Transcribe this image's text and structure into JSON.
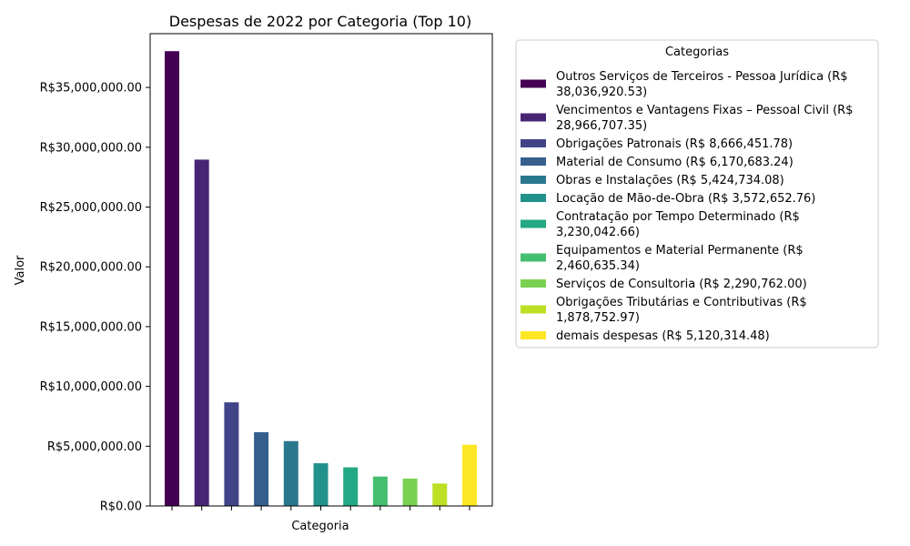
{
  "chart_data": {
    "type": "bar",
    "title": "Despesas de 2022 por Categoria (Top 10)",
    "xlabel": "Categoria",
    "ylabel": "Valor",
    "ylim": [
      0,
      39500000
    ],
    "y_ticks": [
      {
        "value": 0,
        "label": "R$0.00"
      },
      {
        "value": 5000000,
        "label": "R$5,000,000.00"
      },
      {
        "value": 10000000,
        "label": "R$10,000,000.00"
      },
      {
        "value": 15000000,
        "label": "R$15,000,000.00"
      },
      {
        "value": 20000000,
        "label": "R$20,000,000.00"
      },
      {
        "value": 25000000,
        "label": "R$25,000,000.00"
      },
      {
        "value": 30000000,
        "label": "R$30,000,000.00"
      },
      {
        "value": 35000000,
        "label": "R$35,000,000.00"
      }
    ],
    "grid": false,
    "legend": {
      "title": "Categorias",
      "placement": "outside-right"
    },
    "series": [
      {
        "name": "Outros Serviços de Terceiros - Pessoa Jurídica (R$ 38,036,920.53)",
        "legend_lines": [
          "Outros Serviços de Terceiros - Pessoa Jurídica (R$",
          "38,036,920.53)"
        ],
        "value": 38036920.53,
        "color": "#440154"
      },
      {
        "name": "Vencimentos e Vantagens Fixas – Pessoal Civil (R$ 28,966,707.35)",
        "legend_lines": [
          "Vencimentos e Vantagens Fixas – Pessoal Civil (R$",
          "28,966,707.35)"
        ],
        "value": 28966707.35,
        "color": "#482475"
      },
      {
        "name": "Obrigações Patronais (R$ 8,666,451.78)",
        "legend_lines": [
          "Obrigações Patronais (R$ 8,666,451.78)"
        ],
        "value": 8666451.78,
        "color": "#414487"
      },
      {
        "name": "Material de Consumo (R$ 6,170,683.24)",
        "legend_lines": [
          "Material de Consumo (R$ 6,170,683.24)"
        ],
        "value": 6170683.24,
        "color": "#355f8d"
      },
      {
        "name": "Obras e Instalações (R$ 5,424,734.08)",
        "legend_lines": [
          "Obras e Instalações (R$ 5,424,734.08)"
        ],
        "value": 5424734.08,
        "color": "#2a788e"
      },
      {
        "name": "Locação de Mão-de-Obra (R$ 3,572,652.76)",
        "legend_lines": [
          "Locação de Mão-de-Obra (R$ 3,572,652.76)"
        ],
        "value": 3572652.76,
        "color": "#21918c"
      },
      {
        "name": "Contratação por Tempo Determinado (R$ 3,230,042.66)",
        "legend_lines": [
          "Contratação por Tempo Determinado (R$",
          "3,230,042.66)"
        ],
        "value": 3230042.66,
        "color": "#22a884"
      },
      {
        "name": "Equipamentos e Material Permanente (R$ 2,460,635.34)",
        "legend_lines": [
          "Equipamentos e Material Permanente (R$",
          "2,460,635.34)"
        ],
        "value": 2460635.34,
        "color": "#44bf70"
      },
      {
        "name": "Serviços de Consultoria (R$ 2,290,762.00)",
        "legend_lines": [
          "Serviços de Consultoria (R$ 2,290,762.00)"
        ],
        "value": 2290762.0,
        "color": "#7ad151"
      },
      {
        "name": "Obrigações Tributárias e Contributivas (R$ 1,878,752.97)",
        "legend_lines": [
          "Obrigações Tributárias e Contributivas (R$",
          "1,878,752.97)"
        ],
        "value": 1878752.97,
        "color": "#bddf26"
      },
      {
        "name": "demais despesas (R$ 5,120,314.48)",
        "legend_lines": [
          "demais despesas (R$ 5,120,314.48)"
        ],
        "value": 5120314.48,
        "color": "#fde725"
      }
    ]
  }
}
